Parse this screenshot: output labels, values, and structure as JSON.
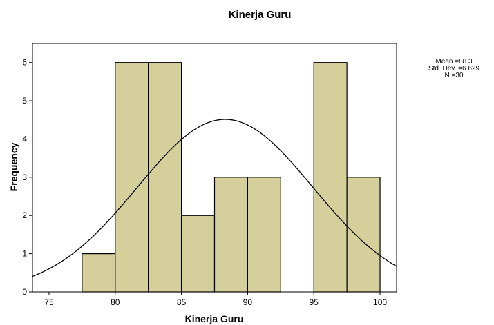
{
  "chart_data": {
    "type": "bar",
    "title": "Kinerja Guru",
    "xlabel": "Kinerja Guru",
    "ylabel": "Frequency",
    "xlim": [
      73.75,
      101.25
    ],
    "ylim": [
      0,
      6.5
    ],
    "x_ticks": [
      75,
      80,
      85,
      90,
      95,
      100
    ],
    "y_ticks": [
      0,
      1,
      2,
      3,
      4,
      5,
      6
    ],
    "bins": [
      {
        "start": 77.5,
        "end": 80.0,
        "count": 1
      },
      {
        "start": 80.0,
        "end": 82.5,
        "count": 6
      },
      {
        "start": 82.5,
        "end": 85.0,
        "count": 6
      },
      {
        "start": 85.0,
        "end": 87.5,
        "count": 2
      },
      {
        "start": 87.5,
        "end": 90.0,
        "count": 3
      },
      {
        "start": 90.0,
        "end": 92.5,
        "count": 3
      },
      {
        "start": 95.0,
        "end": 97.5,
        "count": 6
      },
      {
        "start": 97.5,
        "end": 100.0,
        "count": 3
      }
    ],
    "normal_curve": {
      "mean": 88.3,
      "std": 6.629,
      "n": 30,
      "bin_width": 2.5
    },
    "grid": false,
    "colors": {
      "bar_fill": "#d4cf9b",
      "bar_stroke": "#000000",
      "plot_bg": "#ffffff",
      "curve": "#000000"
    }
  },
  "stats_box": {
    "mean_text": "Mean =88.3",
    "std_text": "Std. Dev. =6.629",
    "n_text": "N =30"
  }
}
